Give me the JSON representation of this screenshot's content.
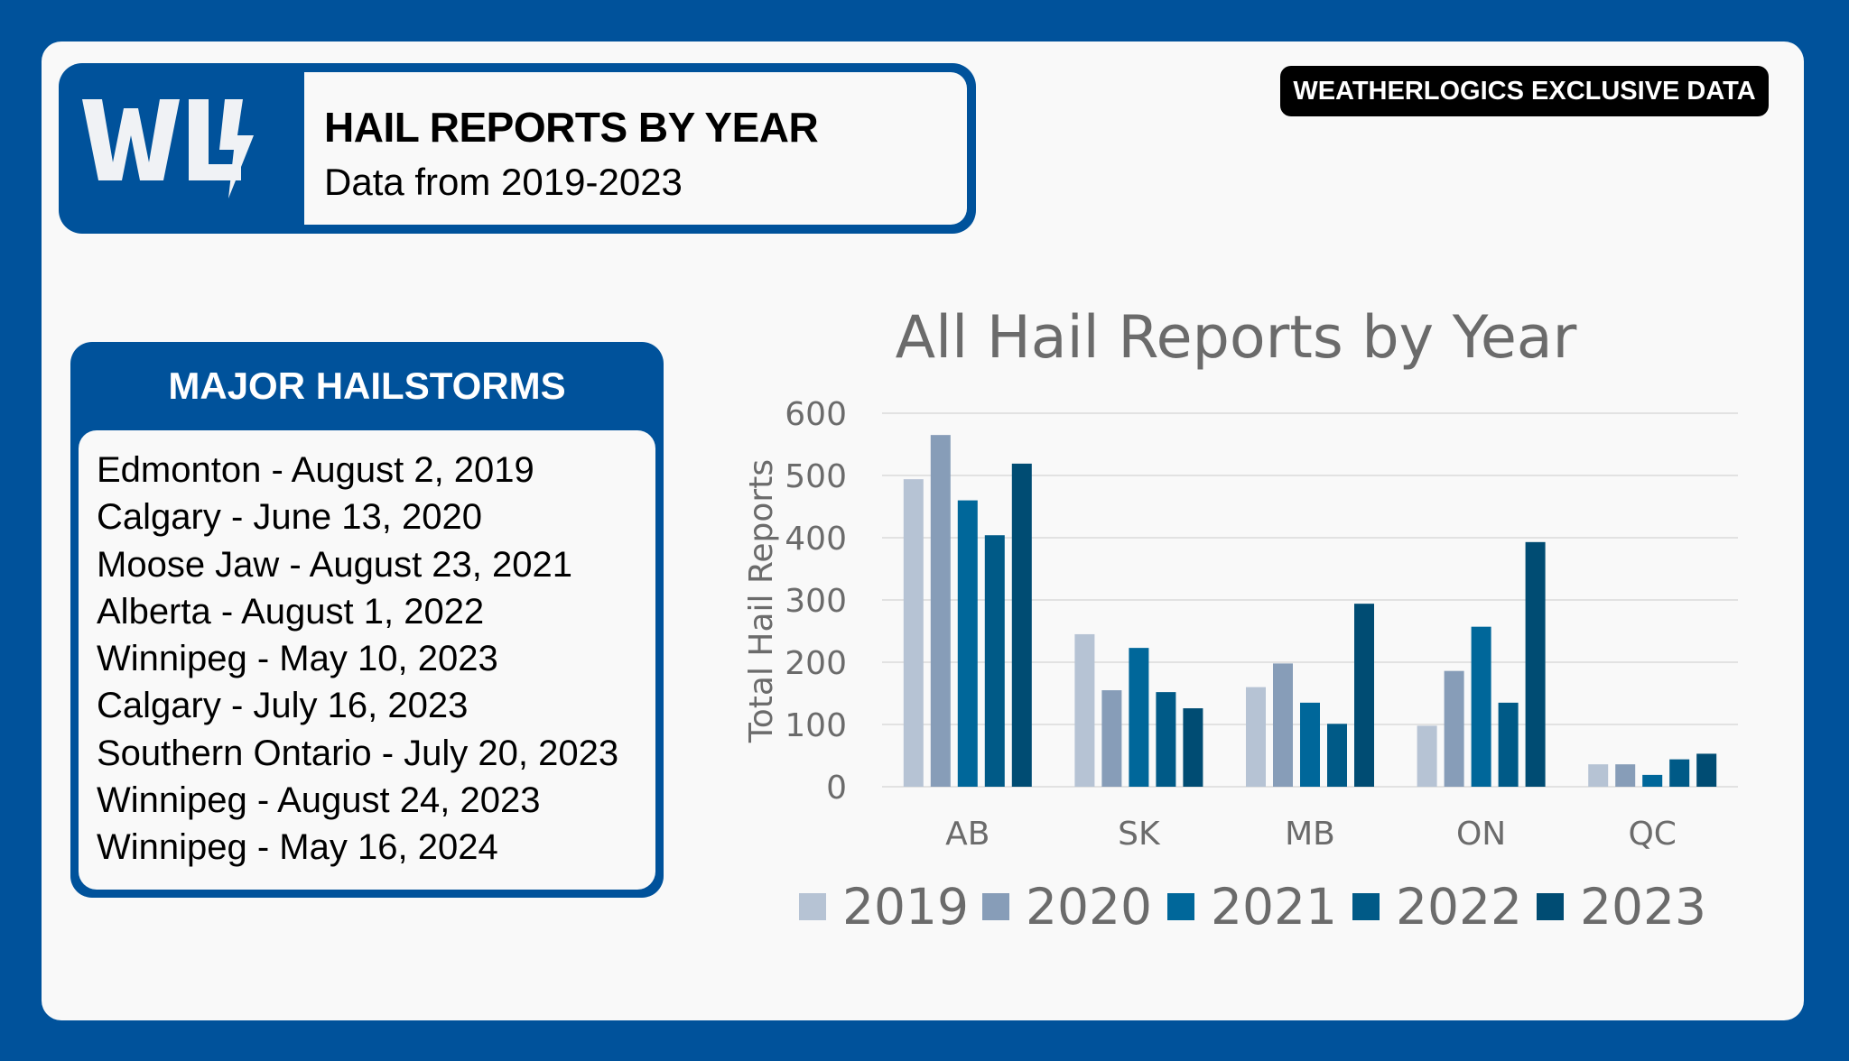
{
  "header": {
    "logo_text": "WL",
    "title": "HAIL REPORTS BY YEAR",
    "subtitle": "Data from 2019-2023"
  },
  "badge": "WEATHERLOGICS EXCLUSIVE DATA",
  "storms": {
    "title": "MAJOR HAILSTORMS",
    "items": [
      "Edmonton - August 2, 2019",
      "Calgary - June 13, 2020",
      "Moose Jaw - August 23, 2021",
      "Alberta - August 1, 2022",
      "Winnipeg - May 10, 2023",
      "Calgary - July 16, 2023",
      "Southern Ontario - July 20, 2023",
      "Winnipeg - August 24, 2023",
      "Winnipeg - May 16, 2024"
    ]
  },
  "colors": {
    "brand": "#00529b"
  },
  "chart_data": {
    "type": "bar",
    "title": "All Hail Reports by Year",
    "xlabel": "",
    "ylabel": "Total Hail Reports",
    "ylim": [
      0,
      600
    ],
    "yticks": [
      0,
      100,
      200,
      300,
      400,
      500,
      600
    ],
    "grid": true,
    "legend": "bottom",
    "categories": [
      "AB",
      "SK",
      "MB",
      "ON",
      "QC"
    ],
    "series": [
      {
        "name": "2019",
        "color": "#b6c3d4",
        "values": [
          494,
          245,
          160,
          98,
          36
        ]
      },
      {
        "name": "2020",
        "color": "#879db8",
        "values": [
          565,
          155,
          198,
          186,
          36
        ]
      },
      {
        "name": "2021",
        "color": "#00679a",
        "values": [
          460,
          223,
          135,
          257,
          19
        ]
      },
      {
        "name": "2022",
        "color": "#005a87",
        "values": [
          404,
          152,
          101,
          135,
          44
        ]
      },
      {
        "name": "2023",
        "color": "#004c73",
        "values": [
          519,
          126,
          294,
          393,
          53
        ]
      }
    ]
  }
}
